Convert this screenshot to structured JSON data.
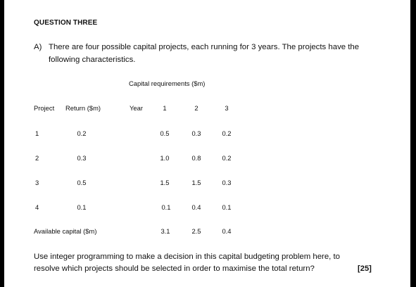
{
  "heading": "QUESTION THREE",
  "part_a": {
    "label": "A)",
    "line1": "There are four possible capital projects, each running for 3 years. The projects have the",
    "line2": "following characteristics."
  },
  "table": {
    "caption": "Capital requirements ($m)",
    "headers": {
      "project": "Project",
      "return": "Return ($m)",
      "year": "Year",
      "years": [
        "1",
        "2",
        "3"
      ]
    },
    "rows": [
      {
        "project": "1",
        "return": "0.2",
        "req": [
          "0.5",
          "0.3",
          "0.2"
        ]
      },
      {
        "project": "2",
        "return": "0.3",
        "req": [
          "1.0",
          "0.8",
          "0.2"
        ]
      },
      {
        "project": "3",
        "return": "0.5",
        "req": [
          "1.5",
          "1.5",
          "0.3"
        ]
      },
      {
        "project": "4",
        "return": "0.1",
        "req": [
          "0.1",
          "0.4",
          "0.1"
        ]
      }
    ],
    "available": {
      "label": "Available capital ($m)",
      "values": [
        "3.1",
        "2.5",
        "0.4"
      ]
    }
  },
  "instruction": {
    "line1": "Use integer programming to make a decision in this capital budgeting problem here, to",
    "line2": "resolve which projects should be selected in order to maximise the total return?",
    "marks": "[25]"
  }
}
